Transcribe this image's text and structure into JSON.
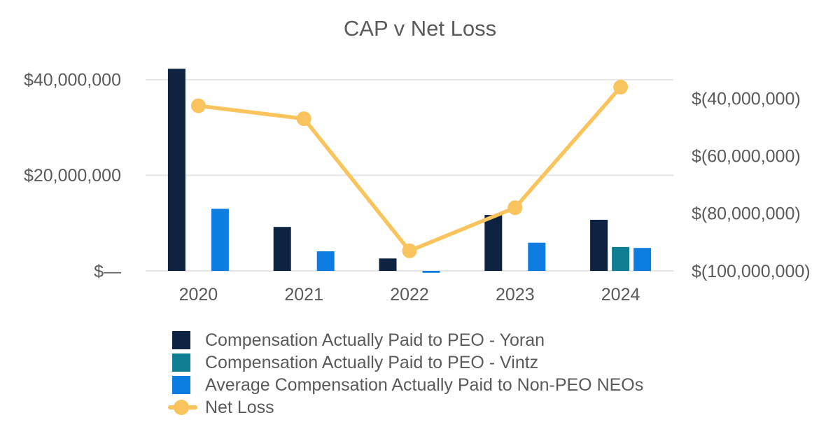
{
  "title": "CAP v Net Loss",
  "chart_data": {
    "type": "combo-bar-line",
    "title": "CAP v Net Loss",
    "categories": [
      "2020",
      "2021",
      "2022",
      "2023",
      "2024"
    ],
    "series": [
      {
        "name": "Compensation Actually Paid to PEO - Yoran",
        "type": "bar",
        "axis": "left",
        "color": "#0d2341",
        "values": [
          42300000,
          9200000,
          2600000,
          11700000,
          10700000
        ]
      },
      {
        "name": "Compensation Actually Paid to PEO - Vintz",
        "type": "bar",
        "axis": "left",
        "color": "#0f7d92",
        "values": [
          null,
          null,
          null,
          null,
          5000000
        ]
      },
      {
        "name": "Average Compensation Actually Paid to Non-PEO NEOs",
        "type": "bar",
        "axis": "left",
        "color": "#0e7de2",
        "values": [
          13000000,
          4100000,
          -400000,
          5900000,
          4800000
        ]
      },
      {
        "name": "Net Loss",
        "type": "line",
        "axis": "right",
        "color": "#f9c45e",
        "values": [
          -42500000,
          -47000000,
          -93000000,
          -78000000,
          -36000000
        ]
      }
    ],
    "left_axis": {
      "min": 0,
      "max": 43500000,
      "ticks": [
        {
          "value": 40000000,
          "label": "$40,000,000"
        },
        {
          "value": 20000000,
          "label": "$20,000,000"
        },
        {
          "value": 0,
          "label": "$—"
        }
      ]
    },
    "right_axis": {
      "min": -100000000,
      "max": -27600000,
      "ticks": [
        {
          "value": -40000000,
          "label": "$(40,000,000)"
        },
        {
          "value": -60000000,
          "label": "$(60,000,000)"
        },
        {
          "value": -80000000,
          "label": "$(80,000,000)"
        },
        {
          "value": -100000000,
          "label": "$(100,000,000)"
        }
      ]
    },
    "grid": true,
    "legend_position": "bottom-left",
    "colors": {
      "text": "#5a5a5a",
      "gridline": "#e6e6e6",
      "background": "#ffffff"
    }
  }
}
